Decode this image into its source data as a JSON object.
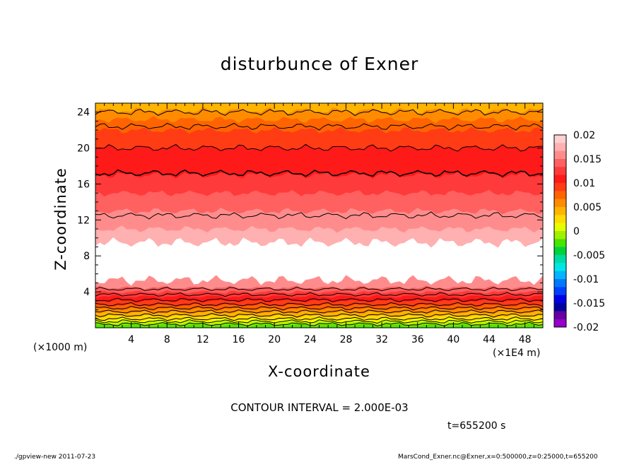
{
  "chart_data": {
    "type": "heatmap",
    "title": "disturbunce of Exner",
    "xlabel": "X-coordinate",
    "ylabel": "Z-coordinate",
    "x_unit_left": "(×1000 m)",
    "x_unit_right": "(×1E4 m)",
    "x_ticks": [
      "4",
      "8",
      "12",
      "16",
      "20",
      "24",
      "28",
      "32",
      "36",
      "40",
      "44",
      "48"
    ],
    "x_tick_values": [
      4,
      8,
      12,
      16,
      20,
      24,
      28,
      32,
      36,
      40,
      44,
      48
    ],
    "xlim": [
      0,
      50
    ],
    "y_ticks": [
      "4",
      "8",
      "12",
      "16",
      "20",
      "24"
    ],
    "y_tick_values": [
      4,
      8,
      12,
      16,
      20,
      24
    ],
    "ylim": [
      0,
      25
    ],
    "contour_interval": "CONTOUR INTERVAL = 2.000E-03",
    "time_label": "t=655200 s",
    "colorbar": {
      "labels": [
        "0.02",
        "0.015",
        "0.01",
        "0.005",
        "0",
        "-0.005",
        "-0.01",
        "-0.015",
        "-0.02"
      ],
      "values": [
        0.02,
        0.015,
        0.01,
        0.005,
        0,
        -0.005,
        -0.01,
        -0.015,
        -0.02
      ],
      "colors_top_to_bottom": [
        "#ffd0d0",
        "#ffb0b0",
        "#ff8c8c",
        "#ff6060",
        "#ff3a3a",
        "#ff1a1a",
        "#ff3c14",
        "#ff6400",
        "#ff8c00",
        "#ffb400",
        "#ffdc00",
        "#e6ff00",
        "#a0f000",
        "#46e600",
        "#00d23c",
        "#00dca0",
        "#00e6e6",
        "#00b4ff",
        "#0078ff",
        "#0040ff",
        "#0000e6",
        "#0000a0",
        "#6400a0",
        "#9600c8"
      ]
    },
    "bands_bottom_to_top": [
      {
        "z0": 0,
        "z1": 0.3,
        "color": "#50e600"
      },
      {
        "z0": 0.3,
        "z1": 0.6,
        "color": "#a0f000"
      },
      {
        "z0": 0.6,
        "z1": 0.9,
        "color": "#e6ff00"
      },
      {
        "z0": 0.9,
        "z1": 1.3,
        "color": "#ffdc00"
      },
      {
        "z0": 1.3,
        "z1": 1.7,
        "color": "#ffb400"
      },
      {
        "z0": 1.7,
        "z1": 2.1,
        "color": "#ff8c00"
      },
      {
        "z0": 2.1,
        "z1": 2.5,
        "color": "#ff6400"
      },
      {
        "z0": 2.5,
        "z1": 3.0,
        "color": "#ff3c14"
      },
      {
        "z0": 3.0,
        "z1": 3.5,
        "color": "#ff1a1a"
      },
      {
        "z0": 3.5,
        "z1": 4.0,
        "color": "#ff3a3a"
      },
      {
        "z0": 4.0,
        "z1": 4.5,
        "color": "#ff6060"
      },
      {
        "z0": 4.5,
        "z1": 5.3,
        "color": "#ff8c8c"
      },
      {
        "z0": 5.3,
        "z1": 9.5,
        "color": "#ffffff"
      },
      {
        "z0": 9.5,
        "z1": 11.0,
        "color": "#ffb0b0"
      },
      {
        "z0": 11.0,
        "z1": 13.0,
        "color": "#ff8c8c"
      },
      {
        "z0": 13.0,
        "z1": 15.0,
        "color": "#ff6060"
      },
      {
        "z0": 15.0,
        "z1": 17.0,
        "color": "#ff3a3a"
      },
      {
        "z0": 17.0,
        "z1": 20.0,
        "color": "#ff1a1a"
      },
      {
        "z0": 20.0,
        "z1": 22.0,
        "color": "#ff3c14"
      },
      {
        "z0": 22.0,
        "z1": 23.2,
        "color": "#ff6400"
      },
      {
        "z0": 23.2,
        "z1": 24.2,
        "color": "#ff8c00"
      },
      {
        "z0": 24.2,
        "z1": 25.0,
        "color": "#ffb400"
      }
    ],
    "contour_levels_z": [
      0.4,
      0.7,
      1.0,
      1.4,
      1.8,
      2.2,
      2.6,
      3.1,
      3.7,
      4.3,
      12.5,
      17.2,
      20.0,
      22.4,
      24.0
    ]
  },
  "footer": {
    "left": "./gpview-new   2011-07-23",
    "right": "MarsCond_Exner.nc@Exner,x=0:500000,z=0:25000,t=655200"
  }
}
